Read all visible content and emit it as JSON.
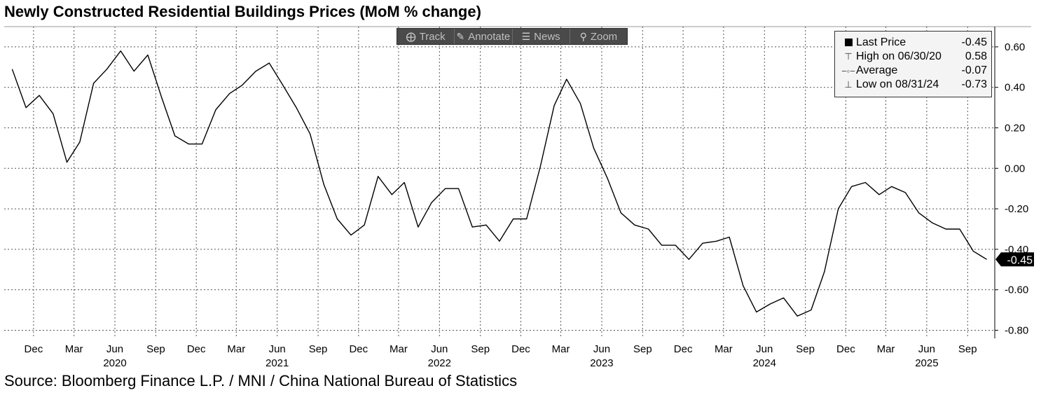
{
  "title": "Newly Constructed Residential Buildings Prices (MoM % change)",
  "source": "Source: Bloomberg Finance L.P. / MNI / China National Bureau of Statistics",
  "toolbar": {
    "track": {
      "label": "Track",
      "icon": "crosshair-icon"
    },
    "annotate": {
      "label": "Annotate",
      "icon": "pencil-icon"
    },
    "news": {
      "label": "News",
      "icon": "news-icon"
    },
    "zoom": {
      "label": "Zoom",
      "icon": "magnifier-icon"
    }
  },
  "legend": {
    "last_price": {
      "label": "Last Price",
      "value": "-0.45"
    },
    "high": {
      "label": "High on 06/30/20",
      "value": "0.58"
    },
    "average": {
      "label": "Average",
      "value": "-0.07"
    },
    "low": {
      "label": "Low on 08/31/24",
      "value": "-0.73"
    }
  },
  "last_value_tag": "-0.45",
  "colors": {
    "line": "#000000",
    "grid": "#555555",
    "tag_bg": "#000000",
    "tag_text": "#ffffff"
  },
  "chart_data": {
    "type": "line",
    "title": "Newly Constructed Residential Buildings Prices (MoM % change)",
    "x_tick_labels": [
      {
        "label": "Dec",
        "date": "2019-12"
      },
      {
        "label": "Mar",
        "date": "2020-03"
      },
      {
        "label": "Jun",
        "date": "2020-06"
      },
      {
        "label": "Sep",
        "date": "2020-09"
      },
      {
        "label": "Dec",
        "date": "2020-12"
      },
      {
        "label": "Mar",
        "date": "2021-03"
      },
      {
        "label": "Jun",
        "date": "2021-06"
      },
      {
        "label": "Sep",
        "date": "2021-09"
      },
      {
        "label": "Dec",
        "date": "2021-12"
      },
      {
        "label": "Mar",
        "date": "2022-03"
      },
      {
        "label": "Jun",
        "date": "2022-06"
      },
      {
        "label": "Sep",
        "date": "2022-09"
      },
      {
        "label": "Dec",
        "date": "2022-12"
      },
      {
        "label": "Mar",
        "date": "2023-03"
      },
      {
        "label": "Jun",
        "date": "2023-06"
      },
      {
        "label": "Sep",
        "date": "2023-09"
      },
      {
        "label": "Dec",
        "date": "2023-12"
      },
      {
        "label": "Mar",
        "date": "2024-03"
      },
      {
        "label": "Jun",
        "date": "2024-06"
      },
      {
        "label": "Sep",
        "date": "2024-09"
      },
      {
        "label": "Dec",
        "date": "2024-12"
      },
      {
        "label": "Mar",
        "date": "2025-03"
      },
      {
        "label": "Jun",
        "date": "2025-06"
      },
      {
        "label": "Sep",
        "date": "2025-09"
      }
    ],
    "year_labels": [
      {
        "label": "2020",
        "date": "2020-06"
      },
      {
        "label": "2021",
        "date": "2021-06"
      },
      {
        "label": "2022",
        "date": "2022-06"
      },
      {
        "label": "2023",
        "date": "2023-06"
      },
      {
        "label": "2024",
        "date": "2024-06"
      },
      {
        "label": "2025",
        "date": "2025-06"
      }
    ],
    "y_ticks": [
      0.6,
      0.4,
      0.2,
      0.0,
      -0.2,
      -0.4,
      -0.6,
      -0.8
    ],
    "y_tick_labels": [
      "0.60",
      "0.40",
      "0.20",
      "0.00",
      "-0.20",
      "-0.40",
      "-0.60",
      "-0.80"
    ],
    "ylim": [
      -0.84,
      0.7
    ],
    "xlim": [
      "2019-10-10",
      "2025-11-15"
    ],
    "grid": true,
    "legend_position": "top-right",
    "series": [
      {
        "points": [
          {
            "x": "2019-10",
            "y": 0.49
          },
          {
            "x": "2019-11",
            "y": 0.3
          },
          {
            "x": "2019-12",
            "y": 0.36
          },
          {
            "x": "2020-01",
            "y": 0.27
          },
          {
            "x": "2020-02",
            "y": 0.03
          },
          {
            "x": "2020-03",
            "y": 0.13
          },
          {
            "x": "2020-04",
            "y": 0.42
          },
          {
            "x": "2020-05",
            "y": 0.49
          },
          {
            "x": "2020-06",
            "y": 0.58
          },
          {
            "x": "2020-07",
            "y": 0.48
          },
          {
            "x": "2020-08",
            "y": 0.56
          },
          {
            "x": "2020-09",
            "y": 0.35
          },
          {
            "x": "2020-10",
            "y": 0.16
          },
          {
            "x": "2020-11",
            "y": 0.12
          },
          {
            "x": "2020-12",
            "y": 0.12
          },
          {
            "x": "2021-01",
            "y": 0.29
          },
          {
            "x": "2021-02",
            "y": 0.37
          },
          {
            "x": "2021-03",
            "y": 0.41
          },
          {
            "x": "2021-04",
            "y": 0.48
          },
          {
            "x": "2021-05",
            "y": 0.52
          },
          {
            "x": "2021-06",
            "y": 0.41
          },
          {
            "x": "2021-07",
            "y": 0.3
          },
          {
            "x": "2021-08",
            "y": 0.17
          },
          {
            "x": "2021-09",
            "y": -0.08
          },
          {
            "x": "2021-10",
            "y": -0.25
          },
          {
            "x": "2021-11",
            "y": -0.33
          },
          {
            "x": "2021-12",
            "y": -0.28
          },
          {
            "x": "2022-01",
            "y": -0.04
          },
          {
            "x": "2022-02",
            "y": -0.13
          },
          {
            "x": "2022-03",
            "y": -0.07
          },
          {
            "x": "2022-04",
            "y": -0.29
          },
          {
            "x": "2022-05",
            "y": -0.17
          },
          {
            "x": "2022-06",
            "y": -0.1
          },
          {
            "x": "2022-07",
            "y": -0.1
          },
          {
            "x": "2022-08",
            "y": -0.29
          },
          {
            "x": "2022-09",
            "y": -0.28
          },
          {
            "x": "2022-10",
            "y": -0.36
          },
          {
            "x": "2022-11",
            "y": -0.25
          },
          {
            "x": "2022-12",
            "y": -0.25
          },
          {
            "x": "2023-01",
            "y": 0.01
          },
          {
            "x": "2023-02",
            "y": 0.31
          },
          {
            "x": "2023-03",
            "y": 0.44
          },
          {
            "x": "2023-04",
            "y": 0.32
          },
          {
            "x": "2023-05",
            "y": 0.1
          },
          {
            "x": "2023-06",
            "y": -0.05
          },
          {
            "x": "2023-07",
            "y": -0.22
          },
          {
            "x": "2023-08",
            "y": -0.28
          },
          {
            "x": "2023-09",
            "y": -0.3
          },
          {
            "x": "2023-10",
            "y": -0.38
          },
          {
            "x": "2023-11",
            "y": -0.38
          },
          {
            "x": "2023-12",
            "y": -0.45
          },
          {
            "x": "2024-01",
            "y": -0.37
          },
          {
            "x": "2024-02",
            "y": -0.36
          },
          {
            "x": "2024-03",
            "y": -0.34
          },
          {
            "x": "2024-04",
            "y": -0.58
          },
          {
            "x": "2024-05",
            "y": -0.71
          },
          {
            "x": "2024-06",
            "y": -0.67
          },
          {
            "x": "2024-07",
            "y": -0.64
          },
          {
            "x": "2024-08",
            "y": -0.73
          },
          {
            "x": "2024-09",
            "y": -0.7
          },
          {
            "x": "2024-10",
            "y": -0.51
          },
          {
            "x": "2024-11",
            "y": -0.2
          },
          {
            "x": "2024-12",
            "y": -0.09
          },
          {
            "x": "2025-01",
            "y": -0.07
          },
          {
            "x": "2025-02",
            "y": -0.13
          },
          {
            "x": "2025-03",
            "y": -0.09
          },
          {
            "x": "2025-04",
            "y": -0.12
          },
          {
            "x": "2025-05",
            "y": -0.22
          },
          {
            "x": "2025-06",
            "y": -0.27
          },
          {
            "x": "2025-07",
            "y": -0.3
          },
          {
            "x": "2025-08",
            "y": -0.3
          },
          {
            "x": "2025-09",
            "y": -0.41
          },
          {
            "x": "2025-10",
            "y": -0.45
          }
        ]
      }
    ]
  }
}
